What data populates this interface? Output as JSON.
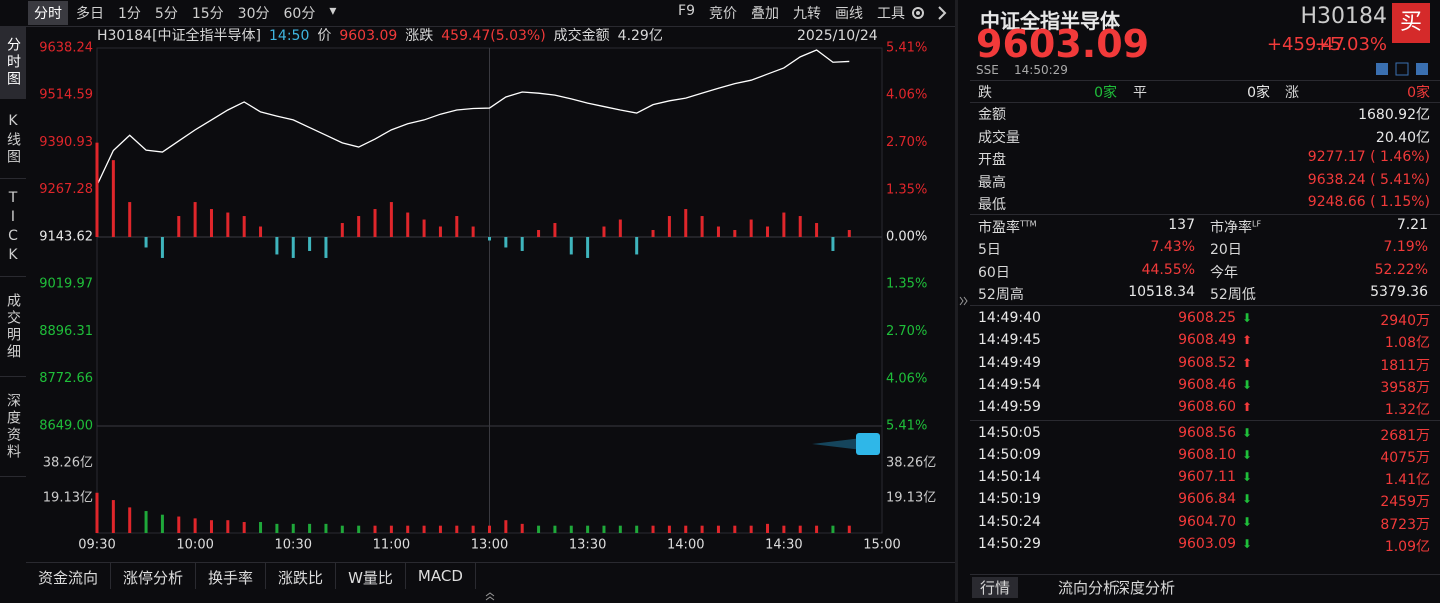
{
  "toolbar": {
    "tabs": [
      "分时",
      "多日",
      "1分",
      "5分",
      "15分",
      "30分",
      "60分"
    ],
    "tools": [
      "F9",
      "竞价",
      "叠加",
      "九转",
      "画线",
      "工具"
    ]
  },
  "sidebar": [
    "分时图",
    "K线图",
    "TICK",
    "成交明细",
    "深度资料"
  ],
  "header": {
    "code_name": "H30184[中证全指半导体]",
    "time": "14:50",
    "price_label": "价",
    "price": "9603.09",
    "change_label": "涨跌",
    "change": "459.47(5.03%)",
    "amount_label": "成交金额",
    "amount": "4.29亿",
    "date": "2025/10/24"
  },
  "chart_data": {
    "type": "line",
    "x": [
      "09:30",
      "09:35",
      "09:40",
      "09:45",
      "09:50",
      "09:55",
      "10:00",
      "10:05",
      "10:10",
      "10:15",
      "10:20",
      "10:25",
      "10:30",
      "10:35",
      "10:40",
      "10:45",
      "10:50",
      "10:55",
      "11:00",
      "11:05",
      "11:10",
      "11:15",
      "11:20",
      "11:25",
      "11:30",
      "13:05",
      "13:10",
      "13:15",
      "13:20",
      "13:25",
      "13:30",
      "13:35",
      "13:40",
      "13:45",
      "13:50",
      "13:55",
      "14:00",
      "14:05",
      "14:10",
      "14:15",
      "14:20",
      "14:25",
      "14:30",
      "14:35",
      "14:40",
      "14:45",
      "14:50"
    ],
    "series": [
      {
        "color": "#ffffff",
        "values": [
          9279,
          9370,
          9410,
          9371,
          9366,
          9395,
          9424,
          9450,
          9476,
          9497,
          9471,
          9460,
          9450,
          9430,
          9410,
          9390,
          9379,
          9400,
          9424,
          9440,
          9450,
          9465,
          9476,
          9480,
          9481,
          9510,
          9523,
          9520,
          9515,
          9505,
          9494,
          9485,
          9476,
          9468,
          9490,
          9500,
          9507,
          9520,
          9533,
          9545,
          9554,
          9570,
          9586,
          9615,
          9633,
          9601,
          9603.09
        ]
      },
      {
        "type": "bar",
        "axis": "y2",
        "color": "#e0262b",
        "negative_color": "#3fb5bd",
        "values": [
          2.7,
          2.2,
          1.0,
          -0.3,
          -0.6,
          0.6,
          1.0,
          0.8,
          0.7,
          0.6,
          0.3,
          -0.5,
          -0.6,
          -0.4,
          -0.6,
          0.4,
          0.6,
          0.8,
          1.0,
          0.7,
          0.5,
          0.3,
          0.6,
          0.3,
          -0.1,
          -0.3,
          -0.4,
          0.2,
          0.4,
          -0.5,
          -0.6,
          0.3,
          0.5,
          -0.5,
          0.2,
          0.6,
          0.8,
          0.6,
          0.3,
          0.2,
          0.5,
          0.3,
          0.7,
          0.6,
          0.4,
          -0.4,
          0.2
        ]
      },
      {
        "type": "bar",
        "axis": "vol",
        "color": "#e0262b",
        "negative_color": "#1fa83a",
        "values": [
          22,
          18,
          14,
          12,
          10,
          9,
          8,
          7,
          7,
          6,
          6,
          5,
          5,
          5,
          5,
          4,
          4,
          4,
          4,
          4,
          4,
          4,
          4,
          4,
          4,
          7,
          5,
          4,
          4,
          4,
          4,
          4,
          4,
          4,
          4,
          4,
          4,
          4,
          4,
          4,
          4,
          5,
          4,
          4,
          4,
          4,
          4
        ]
      }
    ],
    "ylim": [
      8649,
      9638.24
    ],
    "yticks": [
      9638.24,
      9514.59,
      9390.93,
      9267.28,
      9143.62,
      9019.97,
      8896.31,
      8772.66,
      {
        "value": 8649,
        "label": "8649.00"
      }
    ],
    "y2lim": [
      -5.41,
      5.41
    ],
    "y2ticks": [
      {
        "value": 5.41,
        "label": "5.41%"
      },
      {
        "value": 4.06,
        "label": "4.06%"
      },
      {
        "value": 2.7,
        "label": "2.70%"
      },
      {
        "value": 1.35,
        "label": "1.35%"
      },
      {
        "value": 0,
        "label": "0.00%"
      },
      {
        "value": -1.35,
        "label": "1.35%"
      },
      {
        "value": -2.7,
        "label": "2.70%"
      },
      {
        "value": -4.06,
        "label": "4.06%"
      },
      {
        "value": -5.41,
        "label": "5.41%"
      }
    ],
    "vol_ylim": [
      0,
      58.5
    ],
    "vol_ticks": [
      {
        "value": 38.26,
        "label": "38.26亿"
      },
      {
        "value": 19.13,
        "label": "19.13亿"
      }
    ],
    "xticks": [
      "09:30",
      "10:00",
      "10:30",
      "11:00",
      "13:00",
      "13:30",
      "14:00",
      "14:30",
      "15:00"
    ],
    "up_color": "#e0262b",
    "down_color": "#1fbf3a"
  },
  "bottom_tabs": [
    "资金流向",
    "涨停分析",
    "换手率",
    "涨跌比",
    "W量比",
    "MACD"
  ],
  "quote": {
    "name": "中证全指半导体",
    "code": "H30184",
    "buy": "买",
    "price": "9603.09",
    "change": "+459.47",
    "pct": "+5.03%",
    "exchange": "SSE",
    "time": "14:50:29",
    "breadth": [
      {
        "label": "跌",
        "value": "0家"
      },
      {
        "label": "平",
        "value": "0家"
      },
      {
        "label": "涨",
        "value": "0家"
      }
    ],
    "stats": [
      {
        "label": "金额",
        "value": "1680.92亿"
      },
      {
        "label": "成交量",
        "value": "20.40亿"
      },
      {
        "label": "开盘",
        "value": "9277.17 ( 1.46%)"
      },
      {
        "label": "最高",
        "value": "9638.24 ( 5.41%)"
      },
      {
        "label": "最低",
        "value": "9248.66 ( 1.15%)"
      }
    ],
    "grid": [
      [
        {
          "label": "市盈率",
          "sup": "TTM",
          "value": "137"
        },
        {
          "label": "市净率",
          "sup": "LF",
          "value": "7.21"
        }
      ],
      [
        {
          "label": "5日",
          "value": "7.43%"
        },
        {
          "label": "20日",
          "value": "7.19%"
        }
      ],
      [
        {
          "label": "60日",
          "value": "44.55%"
        },
        {
          "label": "今年",
          "value": "52.22%"
        }
      ],
      [
        {
          "label": "52周高",
          "value": "10518.34"
        },
        {
          "label": "52周低",
          "value": "5379.36"
        }
      ]
    ],
    "trades": [
      {
        "time": "14:49:40",
        "price": "9608.25",
        "volume": "2940万",
        "dir": "down"
      },
      {
        "time": "14:49:45",
        "price": "9608.49",
        "volume": "1.08亿",
        "dir": "up"
      },
      {
        "time": "14:49:49",
        "price": "9608.52",
        "volume": "1811万",
        "dir": "up"
      },
      {
        "time": "14:49:54",
        "price": "9608.46",
        "volume": "3958万",
        "dir": "down"
      },
      {
        "time": "14:49:59",
        "price": "9608.60",
        "volume": "1.32亿",
        "dir": "up"
      },
      {
        "time": "14:50:05",
        "price": "9608.56",
        "volume": "2681万",
        "dir": "down"
      },
      {
        "time": "14:50:09",
        "price": "9608.10",
        "volume": "4075万",
        "dir": "down"
      },
      {
        "time": "14:50:14",
        "price": "9607.11",
        "volume": "1.41亿",
        "dir": "down"
      },
      {
        "time": "14:50:19",
        "price": "9606.84",
        "volume": "2459万",
        "dir": "down"
      },
      {
        "time": "14:50:24",
        "price": "9604.70",
        "volume": "8723万",
        "dir": "down"
      },
      {
        "time": "14:50:29",
        "price": "9603.09",
        "volume": "1.09亿",
        "dir": "down"
      }
    ],
    "tabs": [
      "行情",
      "流向分析",
      "深度分析"
    ]
  }
}
